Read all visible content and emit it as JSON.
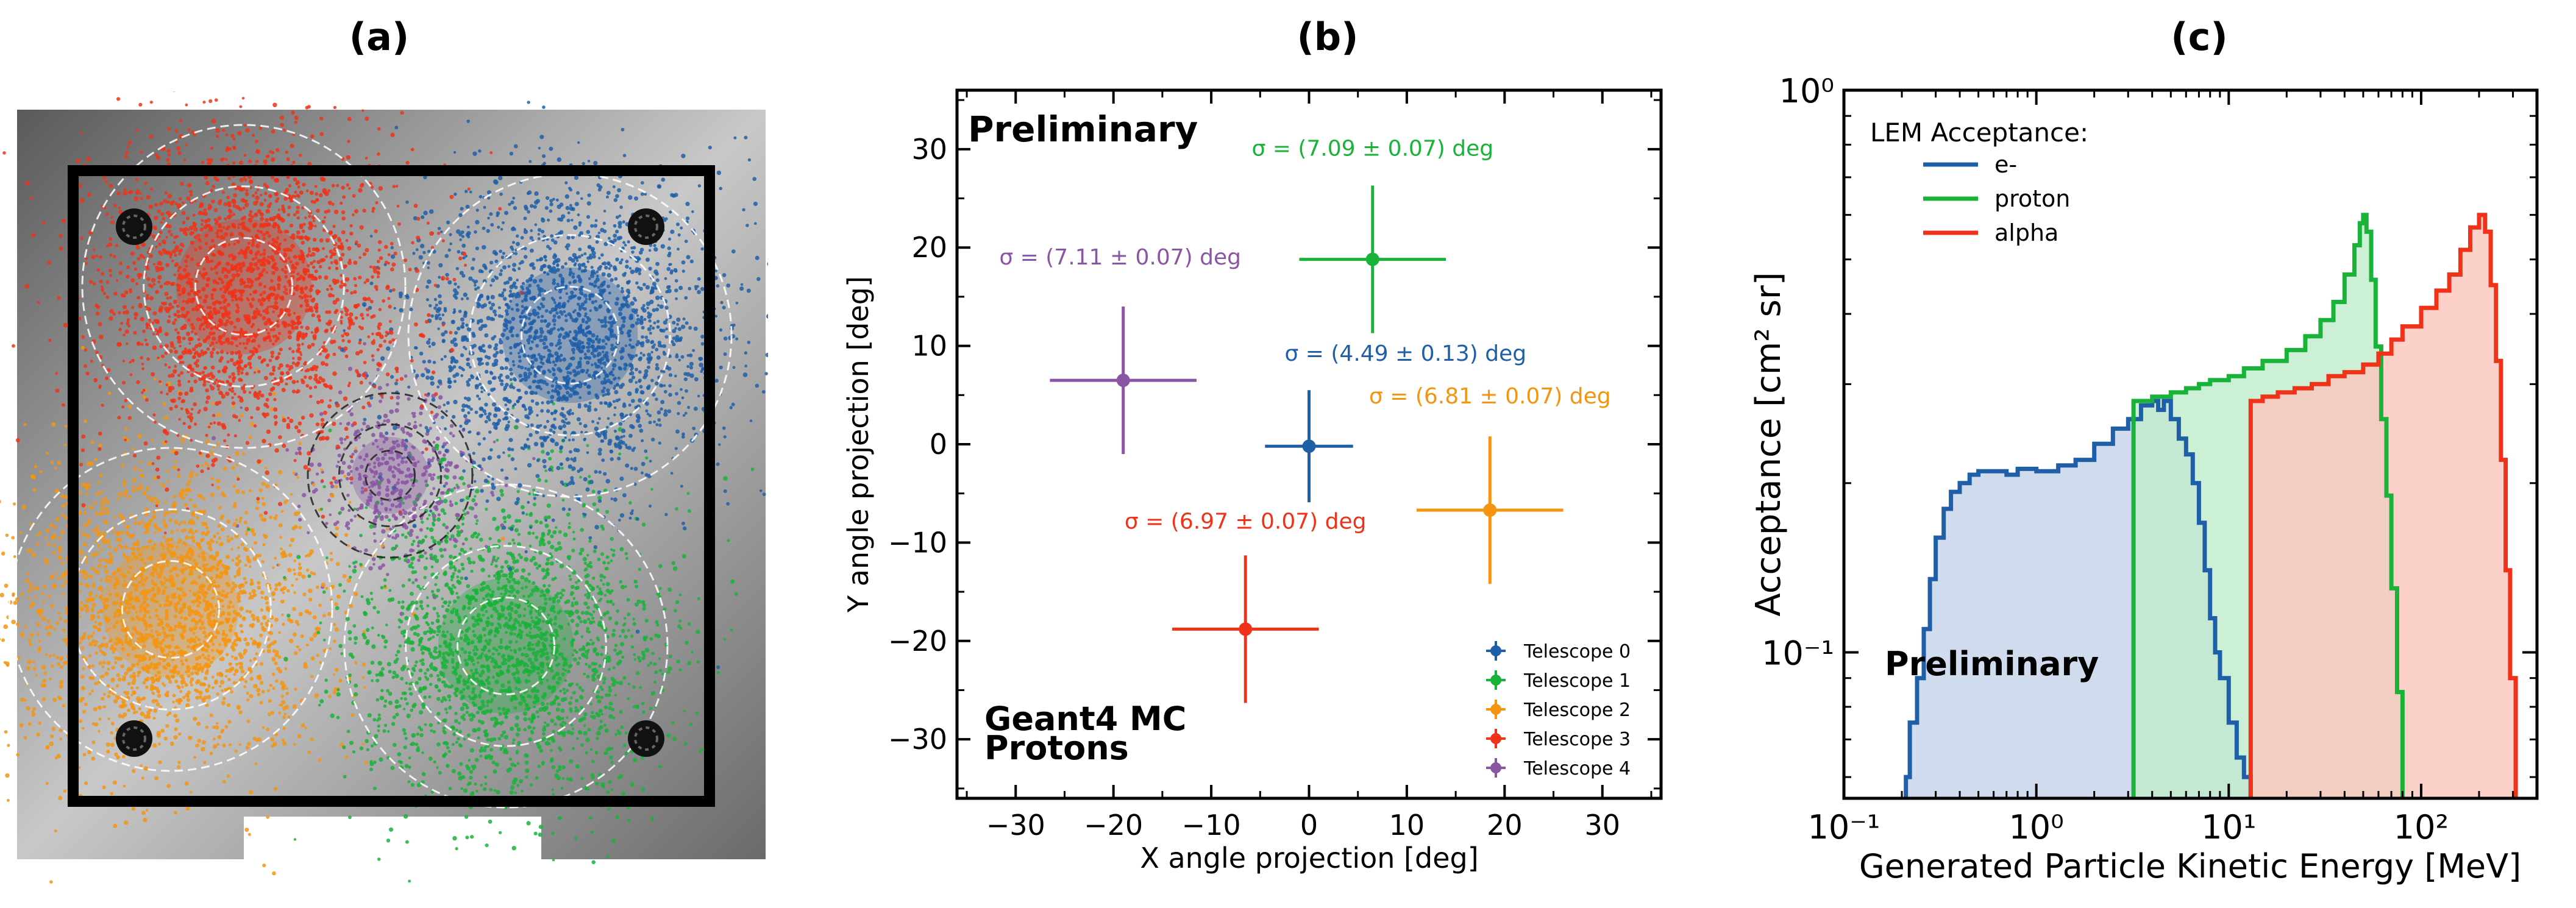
{
  "panels": {
    "a": {
      "label": "(a)"
    },
    "b": {
      "label": "(b)"
    },
    "c": {
      "label": "(c)"
    }
  },
  "colors": {
    "t0": "#1f5fa8",
    "t1": "#19b33a",
    "t2": "#f5940f",
    "t3": "#f03218",
    "t4": "#8a55a3"
  },
  "chart_data": [
    {
      "type": "image",
      "panel": "a",
      "description_label": "(a)",
      "clusters": [
        {
          "name": "Telescope 0",
          "color": "#1f5fa8"
        },
        {
          "name": "Telescope 1",
          "color": "#19b33a"
        },
        {
          "name": "Telescope 2",
          "color": "#f5940f"
        },
        {
          "name": "Telescope 3",
          "color": "#f03218"
        },
        {
          "name": "Telescope 4",
          "color": "#8a55a3"
        }
      ]
    },
    {
      "type": "scatter",
      "panel": "b",
      "title": "(b)",
      "xlabel": "X angle projection [deg]",
      "ylabel": "Y angle projection [deg]",
      "xlim": [
        -36,
        36
      ],
      "ylim": [
        -36,
        36
      ],
      "xticks": [
        -30,
        -20,
        -10,
        0,
        10,
        20,
        30
      ],
      "yticks": [
        -30,
        -20,
        -10,
        0,
        10,
        20,
        30
      ],
      "xtick_labels": [
        "−30",
        "−20",
        "−10",
        "0",
        "10",
        "20",
        "30"
      ],
      "ytick_labels": [
        "−30",
        "−20",
        "−10",
        "0",
        "10",
        "20",
        "30"
      ],
      "annotations": {
        "preliminary": "Preliminary",
        "sim_line1": "Geant4 MC",
        "sim_line2": "Protons"
      },
      "series": [
        {
          "name": "Telescope 0",
          "color": "#1f5fa8",
          "x": 0.0,
          "y": -0.2,
          "xerr": 4.5,
          "yerr": 5.7,
          "sigma_label": "σ = (4.49 ± 0.13) deg"
        },
        {
          "name": "Telescope 1",
          "color": "#19b33a",
          "x": 6.5,
          "y": 18.8,
          "xerr": 7.5,
          "yerr": 7.5,
          "sigma_label": "σ = (7.09 ± 0.07) deg"
        },
        {
          "name": "Telescope 2",
          "color": "#f5940f",
          "x": 18.5,
          "y": -6.7,
          "xerr": 7.5,
          "yerr": 7.5,
          "sigma_label": "σ = (6.81 ± 0.07) deg"
        },
        {
          "name": "Telescope 3",
          "color": "#f03218",
          "x": -6.5,
          "y": -18.8,
          "xerr": 7.5,
          "yerr": 7.5,
          "sigma_label": "σ = (6.97 ± 0.07) deg"
        },
        {
          "name": "Telescope 4",
          "color": "#8a55a3",
          "x": -19.0,
          "y": 6.5,
          "xerr": 7.5,
          "yerr": 7.5,
          "sigma_label": "σ = (7.11 ± 0.07) deg"
        }
      ]
    },
    {
      "type": "area",
      "panel": "c",
      "title": "(c)",
      "xlabel": "Generated Particle Kinetic Energy [MeV]",
      "ylabel": "Acceptance [cm² sr]",
      "xscale": "log",
      "yscale": "log",
      "xlim": [
        0.1,
        400
      ],
      "ylim": [
        0.055,
        1.0
      ],
      "xtick_labels": [
        "10⁻¹",
        "10⁰",
        "10¹",
        "10²"
      ],
      "ytick_labels": [
        "10⁰",
        "10⁻¹"
      ],
      "legend_title": "LEM Acceptance:",
      "annotations": {
        "preliminary": "Preliminary"
      },
      "series": [
        {
          "name": "e-",
          "color": "#1f5fa8",
          "fill": "#c4d3e8",
          "points": [
            [
              0.2,
              0.05
            ],
            [
              0.21,
              0.06
            ],
            [
              0.22,
              0.075
            ],
            [
              0.24,
              0.09
            ],
            [
              0.26,
              0.11
            ],
            [
              0.28,
              0.135
            ],
            [
              0.3,
              0.16
            ],
            [
              0.33,
              0.18
            ],
            [
              0.36,
              0.193
            ],
            [
              0.4,
              0.2
            ],
            [
              0.45,
              0.207
            ],
            [
              0.5,
              0.21
            ],
            [
              0.6,
              0.21
            ],
            [
              0.7,
              0.207
            ],
            [
              0.8,
              0.212
            ],
            [
              1.0,
              0.21
            ],
            [
              1.3,
              0.215
            ],
            [
              1.6,
              0.22
            ],
            [
              2.0,
              0.235
            ],
            [
              2.5,
              0.25
            ],
            [
              3.0,
              0.26
            ],
            [
              3.5,
              0.275
            ],
            [
              4.0,
              0.28
            ],
            [
              4.3,
              0.27
            ],
            [
              4.6,
              0.28
            ],
            [
              5.0,
              0.26
            ],
            [
              5.5,
              0.24
            ],
            [
              6.0,
              0.225
            ],
            [
              6.5,
              0.2
            ],
            [
              7.0,
              0.17
            ],
            [
              7.5,
              0.14
            ],
            [
              8.0,
              0.115
            ],
            [
              8.5,
              0.1
            ],
            [
              9.0,
              0.09
            ],
            [
              10.0,
              0.075
            ],
            [
              11.0,
              0.065
            ],
            [
              12.0,
              0.06
            ],
            [
              13.0,
              0.05
            ]
          ]
        },
        {
          "name": "proton",
          "color": "#19b33a",
          "fill": "#bfeccc",
          "points": [
            [
              3.2,
              0.05
            ],
            [
              3.2,
              0.28
            ],
            [
              4.0,
              0.285
            ],
            [
              5.0,
              0.29
            ],
            [
              6.0,
              0.295
            ],
            [
              7.0,
              0.3
            ],
            [
              8.0,
              0.305
            ],
            [
              10.0,
              0.31
            ],
            [
              12.0,
              0.32
            ],
            [
              15.0,
              0.33
            ],
            [
              20.0,
              0.345
            ],
            [
              25.0,
              0.365
            ],
            [
              30.0,
              0.39
            ],
            [
              35.0,
              0.42
            ],
            [
              40.0,
              0.47
            ],
            [
              45.0,
              0.53
            ],
            [
              48.0,
              0.58
            ],
            [
              50.0,
              0.6
            ],
            [
              52.0,
              0.56
            ],
            [
              55.0,
              0.46
            ],
            [
              58.0,
              0.35
            ],
            [
              62.0,
              0.26
            ],
            [
              66.0,
              0.19
            ],
            [
              70.0,
              0.13
            ],
            [
              75.0,
              0.085
            ],
            [
              80.0,
              0.055
            ]
          ]
        },
        {
          "name": "alpha",
          "color": "#f03218",
          "fill": "#fbc6bd",
          "points": [
            [
              13.0,
              0.05
            ],
            [
              13.0,
              0.28
            ],
            [
              15.0,
              0.285
            ],
            [
              18.0,
              0.29
            ],
            [
              22.0,
              0.295
            ],
            [
              27.0,
              0.3
            ],
            [
              33.0,
              0.31
            ],
            [
              40.0,
              0.315
            ],
            [
              50.0,
              0.325
            ],
            [
              60.0,
              0.34
            ],
            [
              70.0,
              0.36
            ],
            [
              80.0,
              0.38
            ],
            [
              100.0,
              0.41
            ],
            [
              120.0,
              0.44
            ],
            [
              140.0,
              0.47
            ],
            [
              160.0,
              0.52
            ],
            [
              180.0,
              0.57
            ],
            [
              200.0,
              0.6
            ],
            [
              215.0,
              0.56
            ],
            [
              230.0,
              0.45
            ],
            [
              245.0,
              0.33
            ],
            [
              260.0,
              0.22
            ],
            [
              275.0,
              0.14
            ],
            [
              290.0,
              0.09
            ],
            [
              310.0,
              0.055
            ]
          ]
        }
      ]
    }
  ]
}
